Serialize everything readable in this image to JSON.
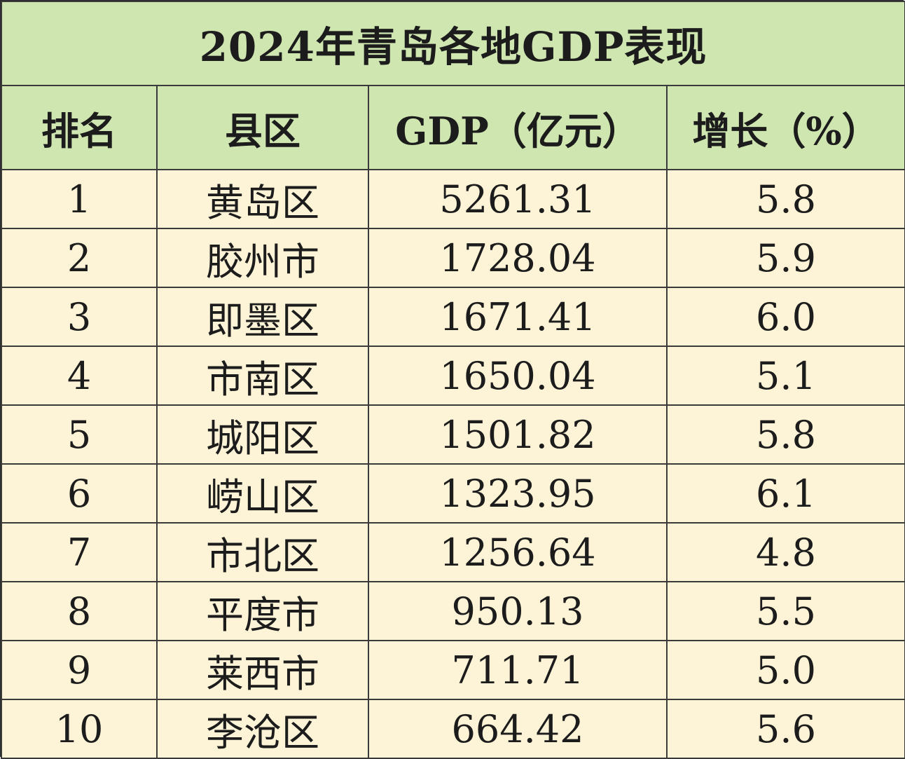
{
  "title": "2024年青岛各地GDP表现",
  "headers": {
    "rank": "排名",
    "district": "县区",
    "gdp": "GDP（亿元）",
    "growth": "增长（%）"
  },
  "rows": [
    {
      "rank": "1",
      "district": "黄岛区",
      "gdp": "5261.31",
      "growth": "5.8"
    },
    {
      "rank": "2",
      "district": "胶州市",
      "gdp": "1728.04",
      "growth": "5.9"
    },
    {
      "rank": "3",
      "district": "即墨区",
      "gdp": "1671.41",
      "growth": "6.0"
    },
    {
      "rank": "4",
      "district": "市南区",
      "gdp": "1650.04",
      "growth": "5.1"
    },
    {
      "rank": "5",
      "district": "城阳区",
      "gdp": "1501.82",
      "growth": "5.8"
    },
    {
      "rank": "6",
      "district": "崂山区",
      "gdp": "1323.95",
      "growth": "6.1"
    },
    {
      "rank": "7",
      "district": "市北区",
      "gdp": "1256.64",
      "growth": "4.8"
    },
    {
      "rank": "8",
      "district": "平度市",
      "gdp": "950.13",
      "growth": "5.5"
    },
    {
      "rank": "9",
      "district": "莱西市",
      "gdp": "711.71",
      "growth": "5.0"
    },
    {
      "rank": "10",
      "district": "李沧区",
      "gdp": "664.42",
      "growth": "5.6"
    }
  ],
  "colors": {
    "header_bg": "#cfe6b0",
    "row_bg": "#fdf3d6",
    "border": "#3a3a3a"
  }
}
